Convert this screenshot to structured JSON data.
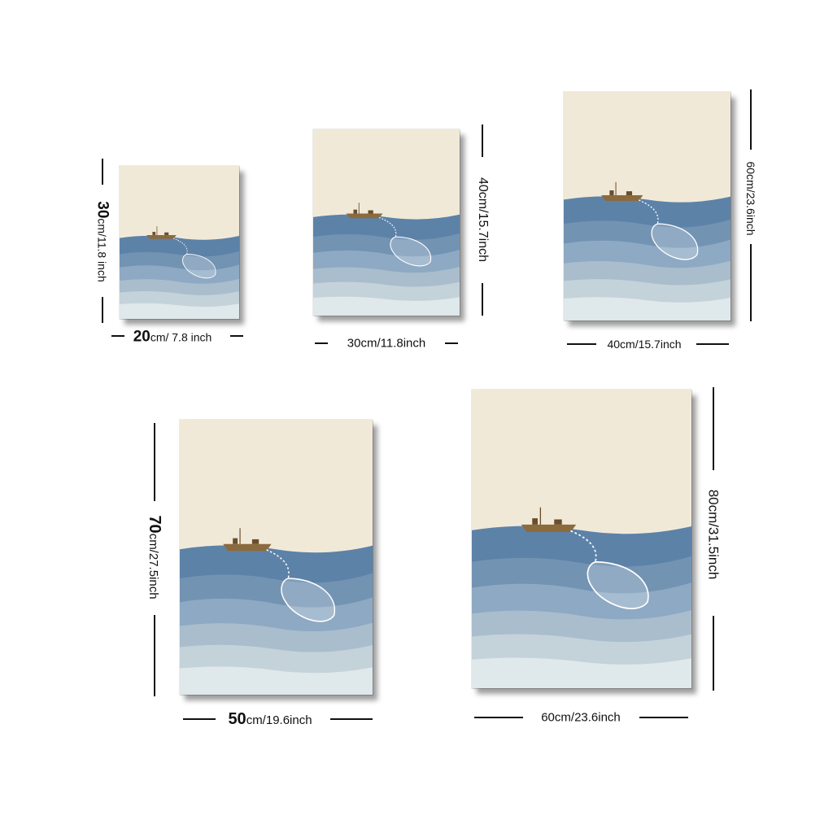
{
  "posters": [
    {
      "id": "size-20x30",
      "width_label": {
        "number": "20",
        "unit": "cm/ 7.8 inch"
      },
      "height_label": {
        "number": "30",
        "unit": "cm/11.8 inch"
      }
    },
    {
      "id": "size-30x40",
      "width_label": {
        "number": "",
        "unit": "30cm/11.8inch"
      },
      "height_label": {
        "number": "",
        "unit": "40cm/15.7inch"
      }
    },
    {
      "id": "size-40x60",
      "width_label": {
        "number": "",
        "unit": "40cm/15.7inch"
      },
      "height_label": {
        "number": "",
        "unit": "60cm/23.6inch"
      }
    },
    {
      "id": "size-50x70",
      "width_label": {
        "number": "50",
        "unit": "cm/19.6inch"
      },
      "height_label": {
        "number": "70",
        "unit": "cm/27.5inch"
      }
    },
    {
      "id": "size-60x80",
      "width_label": {
        "number": "",
        "unit": "60cm/23.6inch"
      },
      "height_label": {
        "number": "",
        "unit": "80cm/31.5inch"
      }
    }
  ],
  "colors": {
    "sky": "#f1e9d8",
    "sea_dark": "#5d82a8",
    "sea_mid": "#8ea9c3",
    "sea_light": "#bccbd6",
    "sea_pale": "#dfe8ea",
    "boat": "#8b6a3e",
    "net": "#ffffff",
    "rule": "#111111"
  },
  "icons": [
    "fishing-boat-icon",
    "fishing-net-icon"
  ]
}
